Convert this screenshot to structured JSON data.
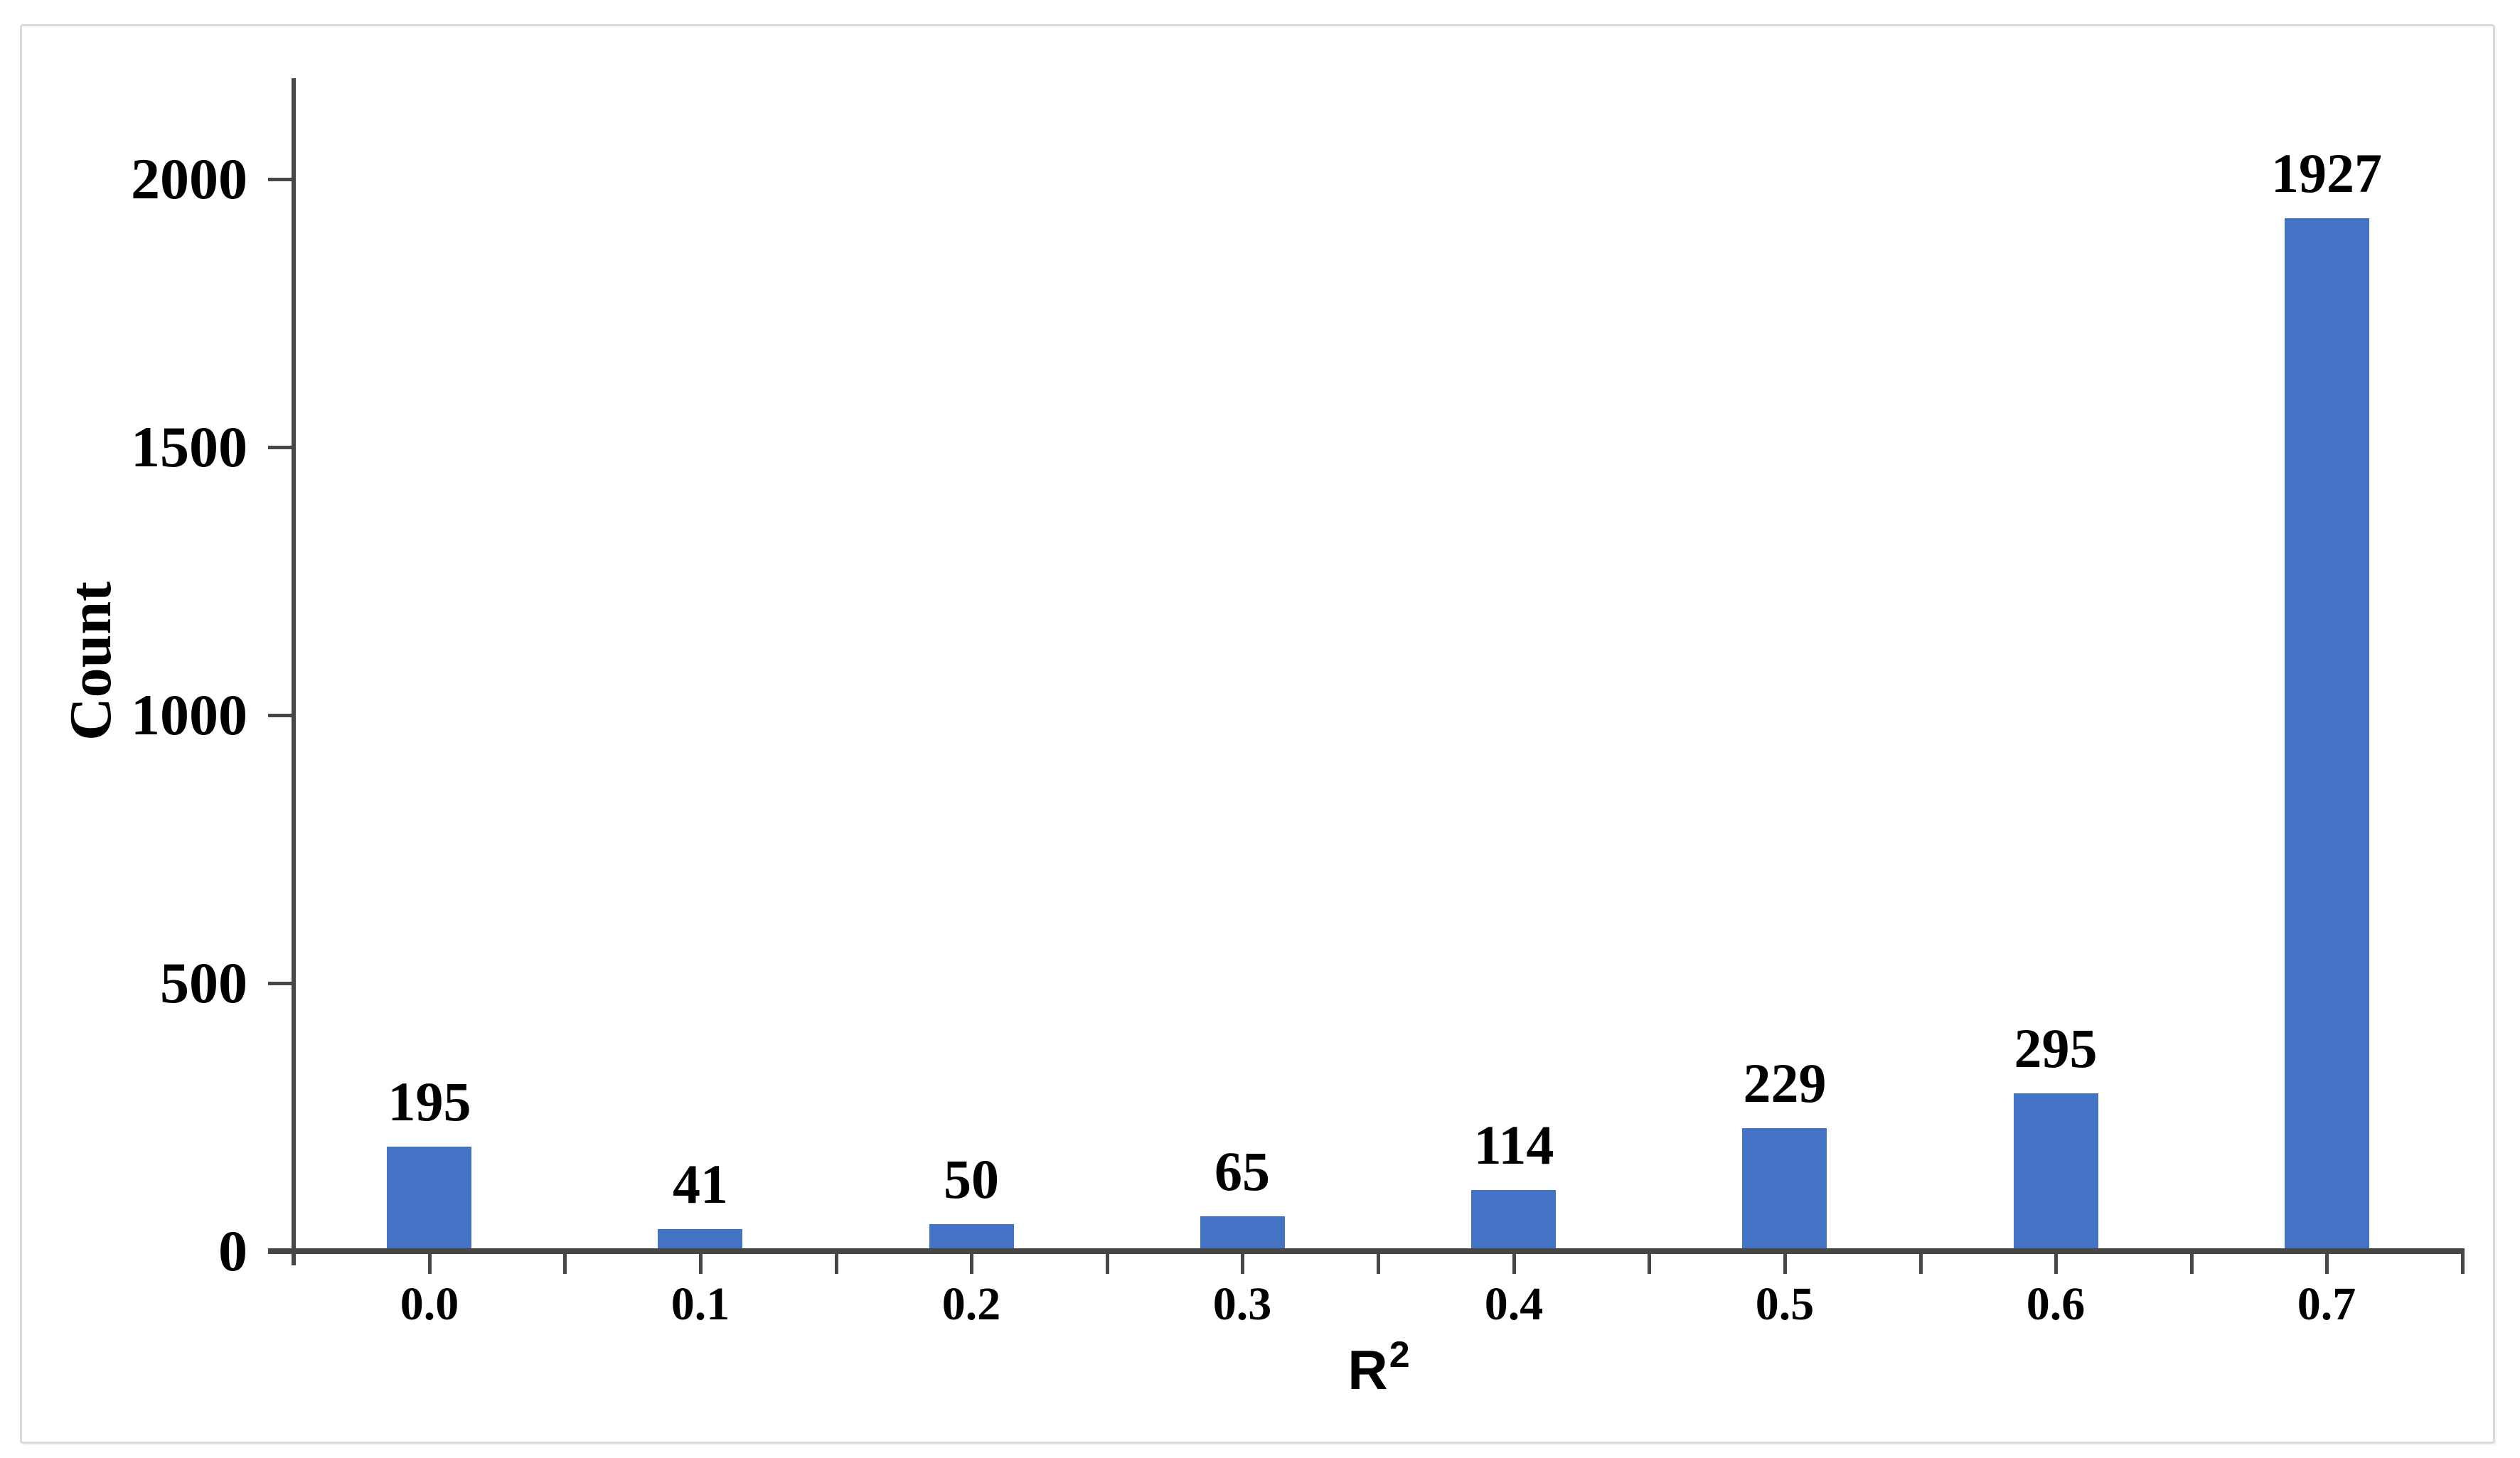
{
  "chart_data": {
    "type": "bar",
    "title": "",
    "xlabel": "R²",
    "xlabel_base": "R",
    "xlabel_sup": "2",
    "ylabel": "Count",
    "categories": [
      "0.0",
      "0.1",
      "0.2",
      "0.3",
      "0.4",
      "0.5",
      "0.6",
      "0.7"
    ],
    "values": [
      195,
      41,
      50,
      65,
      114,
      229,
      295,
      1927
    ],
    "yticks": [
      0,
      500,
      1000,
      1500,
      2000
    ],
    "ylim": [
      0,
      2200
    ],
    "grid": false,
    "legend": "none",
    "data_labels": true,
    "colors": {
      "bar": "#4472C4",
      "axis": "#474747",
      "text": "#000000",
      "frame_border": "#DADADA",
      "background": "#FFFFFF"
    }
  }
}
